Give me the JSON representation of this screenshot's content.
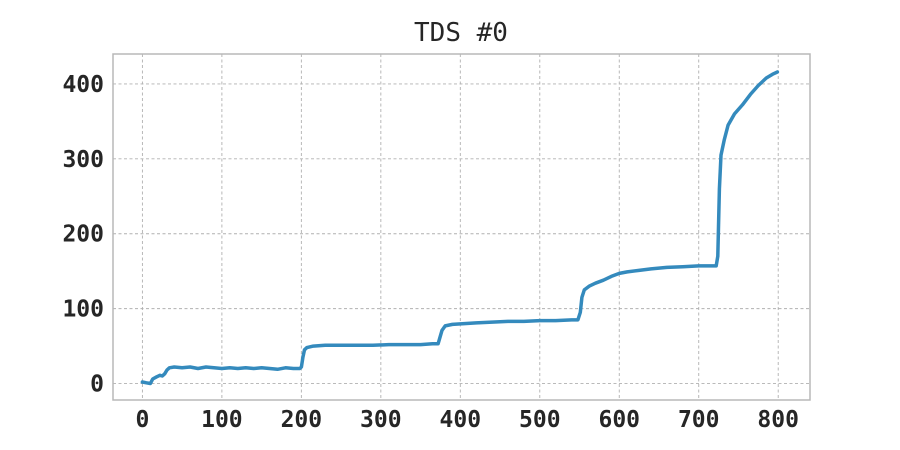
{
  "chart_data": {
    "type": "line",
    "title": "TDS #0",
    "xlabel": "",
    "ylabel": "",
    "xlim": [
      -37,
      840
    ],
    "ylim": [
      -22,
      440
    ],
    "xticks": [
      0,
      100,
      200,
      300,
      400,
      500,
      600,
      700,
      800
    ],
    "yticks": [
      0,
      100,
      200,
      300,
      400
    ],
    "xtick_labels": [
      "0",
      "100",
      "200",
      "300",
      "400",
      "500",
      "600",
      "700",
      "800"
    ],
    "ytick_labels": [
      "0",
      "100",
      "200",
      "300",
      "400"
    ],
    "grid": true,
    "legend": "none",
    "series": [
      {
        "color": "#348ABD",
        "points": [
          [
            0,
            2
          ],
          [
            5,
            1
          ],
          [
            10,
            0
          ],
          [
            13,
            6
          ],
          [
            18,
            9
          ],
          [
            22,
            11
          ],
          [
            25,
            10
          ],
          [
            28,
            13
          ],
          [
            31,
            18
          ],
          [
            34,
            21
          ],
          [
            40,
            22
          ],
          [
            50,
            21
          ],
          [
            60,
            22
          ],
          [
            70,
            20
          ],
          [
            80,
            22
          ],
          [
            90,
            21
          ],
          [
            100,
            20
          ],
          [
            110,
            21
          ],
          [
            120,
            20
          ],
          [
            130,
            21
          ],
          [
            140,
            20
          ],
          [
            150,
            21
          ],
          [
            160,
            20
          ],
          [
            170,
            19
          ],
          [
            180,
            21
          ],
          [
            190,
            20
          ],
          [
            198,
            20
          ],
          [
            200,
            22
          ],
          [
            202,
            35
          ],
          [
            204,
            45
          ],
          [
            207,
            48
          ],
          [
            215,
            50
          ],
          [
            230,
            51
          ],
          [
            250,
            51
          ],
          [
            270,
            51
          ],
          [
            290,
            51
          ],
          [
            310,
            52
          ],
          [
            330,
            52
          ],
          [
            350,
            52
          ],
          [
            365,
            53
          ],
          [
            372,
            53
          ],
          [
            374,
            60
          ],
          [
            377,
            71
          ],
          [
            381,
            77
          ],
          [
            390,
            79
          ],
          [
            405,
            80
          ],
          [
            420,
            81
          ],
          [
            440,
            82
          ],
          [
            460,
            83
          ],
          [
            480,
            83
          ],
          [
            500,
            84
          ],
          [
            520,
            84
          ],
          [
            540,
            85
          ],
          [
            548,
            85
          ],
          [
            551,
            95
          ],
          [
            553,
            115
          ],
          [
            556,
            125
          ],
          [
            562,
            130
          ],
          [
            570,
            134
          ],
          [
            580,
            138
          ],
          [
            590,
            143
          ],
          [
            600,
            147
          ],
          [
            610,
            149
          ],
          [
            625,
            151
          ],
          [
            640,
            153
          ],
          [
            660,
            155
          ],
          [
            680,
            156
          ],
          [
            700,
            157
          ],
          [
            715,
            157
          ],
          [
            722,
            157
          ],
          [
            724,
            170
          ],
          [
            726,
            260
          ],
          [
            728,
            305
          ],
          [
            732,
            325
          ],
          [
            737,
            345
          ],
          [
            745,
            360
          ],
          [
            755,
            372
          ],
          [
            765,
            386
          ],
          [
            775,
            398
          ],
          [
            785,
            408
          ],
          [
            793,
            413
          ],
          [
            799,
            416
          ]
        ]
      }
    ]
  }
}
